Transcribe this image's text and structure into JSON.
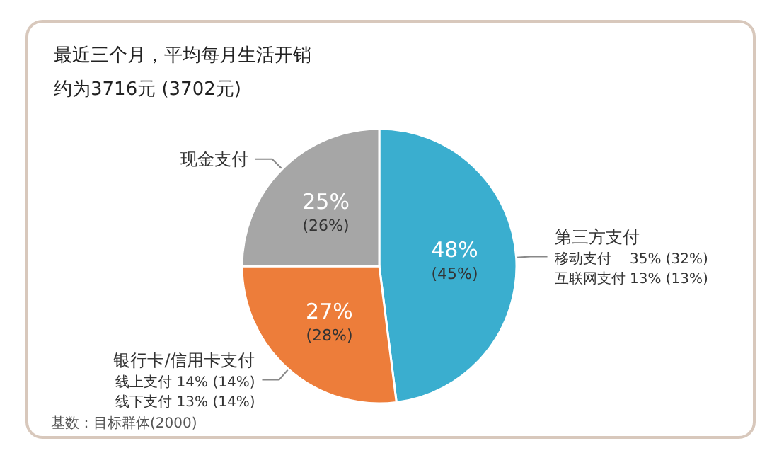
{
  "chart_data": {
    "type": "pie",
    "title": "最近三个月，平均每月生活开销约为3716元 (3702元)",
    "categories": [
      "第三方支付",
      "银行卡/信用卡支付",
      "现金支付"
    ],
    "values": [
      48,
      27,
      25
    ],
    "colors": [
      "#3aaecf",
      "#ed7d3a",
      "#a6a6a6"
    ],
    "value_labels": [
      "48%\n(45%)",
      "27%\n(28%)",
      "25%\n(26%)"
    ],
    "annotations": [
      "移动支付　 35% (32%)",
      "互联网支付 13% (13%)",
      "线上支付 14% (14%)",
      "线下支付 13% (14%)",
      "基数：目标群体(2000)"
    ],
    "legend": false
  }
}
